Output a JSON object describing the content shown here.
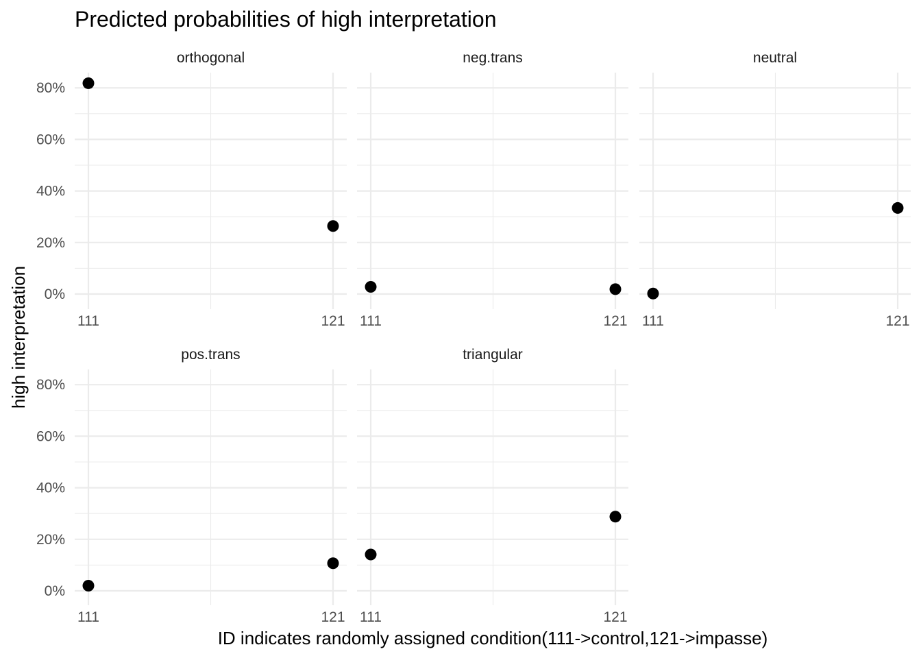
{
  "chart_data": {
    "type": "scatter",
    "title": "Predicted probabilities of high interpretation",
    "xlabel": "ID indicates randomly assigned condition(111->control,121->impasse)",
    "ylabel": "high interpretation",
    "x_categories": [
      "111",
      "121"
    ],
    "y_ticks": [
      "0%",
      "20%",
      "40%",
      "60%",
      "80%"
    ],
    "y_tick_values": [
      0,
      0.2,
      0.4,
      0.6,
      0.8
    ],
    "ylim": [
      0,
      0.86
    ],
    "grid": true,
    "facets": [
      {
        "name": "orthogonal",
        "values": [
          0.818,
          0.264
        ]
      },
      {
        "name": "neg.trans",
        "values": [
          0.028,
          0.019
        ]
      },
      {
        "name": "neutral",
        "values": [
          0.002,
          0.334
        ]
      },
      {
        "name": "pos.trans",
        "values": [
          0.02,
          0.107
        ]
      },
      {
        "name": "triangular",
        "values": [
          0.141,
          0.288
        ]
      }
    ]
  }
}
